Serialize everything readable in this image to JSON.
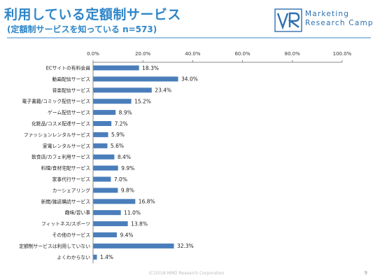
{
  "header": {
    "title": "利用している定額制サービス",
    "subtitle": "(定額制サービスを知っている n=573)"
  },
  "logo": {
    "mark": "VR",
    "line1": "Marketing",
    "line2": "Research Camp"
  },
  "footer": {
    "copyright": "(C)2018 MMD Research Corporation",
    "page": "9"
  },
  "colors": {
    "bar": "#4a7ebb",
    "title": "#2e86c8",
    "rule": "#9dc3e6"
  },
  "chart_data": {
    "type": "bar",
    "orientation": "horizontal",
    "xlim": [
      0,
      100
    ],
    "xticks": [
      "0.0%",
      "20.0%",
      "40.0%",
      "60.0%",
      "80.0%",
      "100.0%"
    ],
    "grid": false,
    "categories": [
      "ECサイトの有料会員",
      "動画配信サービス",
      "音楽配信サービス",
      "電子書籍/コミック配信サービス",
      "ゲーム配信サービス",
      "化粧品/コスメ配達サービス",
      "ファッションレンタルサービス",
      "家電レンタルサービス",
      "飲食店/カフェ利用サービス",
      "料理/食材宅配サービス",
      "家事代行サービス",
      "カーシェアリング",
      "新聞/雑誌購読サービス",
      "趣味/習い事",
      "フィットネス/スポーツ",
      "その他のサービス",
      "定額制サービスは利用していない",
      "よくわからない"
    ],
    "values": [
      18.3,
      34.0,
      23.4,
      15.2,
      8.9,
      7.2,
      5.9,
      5.6,
      8.4,
      9.9,
      7.0,
      9.8,
      16.8,
      11.0,
      13.8,
      9.4,
      32.3,
      1.4
    ],
    "value_labels": [
      "18.3%",
      "34.0%",
      "23.4%",
      "15.2%",
      "8.9%",
      "7.2%",
      "5.9%",
      "5.6%",
      "8.4%",
      "9.9%",
      "7.0%",
      "9.8%",
      "16.8%",
      "11.0%",
      "13.8%",
      "9.4%",
      "32.3%",
      "1.4%"
    ]
  }
}
